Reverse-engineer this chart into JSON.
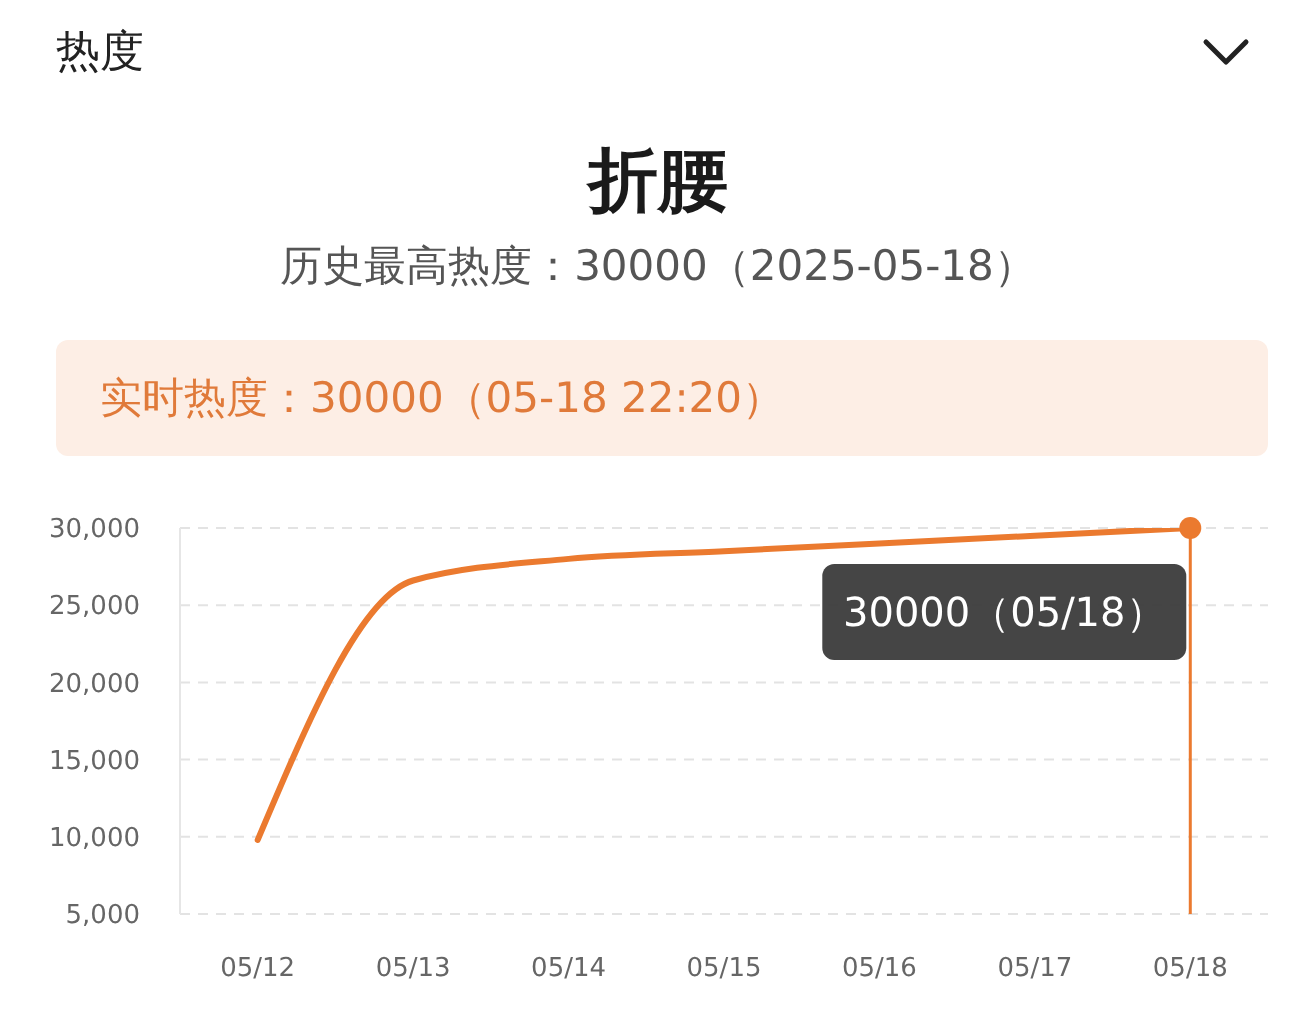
{
  "chart_data": {
    "type": "line",
    "title": "折腰",
    "subtitle": "历史最高热度：30000（2025-05-18）",
    "annotations": [
      "热度",
      "实时热度：30000（05-18 22:20）",
      {
        "text": "30000（05/18）",
        "x": "05/18",
        "y": 30000
      }
    ],
    "categories": [
      "05/12",
      "05/13",
      "05/14",
      "05/15",
      "05/16",
      "05/17",
      "05/18"
    ],
    "series": [
      {
        "color": "#eb7a2f",
        "values": [
          9800,
          26600,
          28000,
          28500,
          29000,
          29500,
          30000
        ]
      }
    ],
    "ylim": [
      5000,
      30000
    ],
    "yticks": [
      {
        "value": 5000,
        "label": "5,000"
      },
      {
        "value": 10000,
        "label": "10,000"
      },
      {
        "value": 15000,
        "label": "15,000"
      },
      {
        "value": 20000,
        "label": "20,000"
      },
      {
        "value": 25000,
        "label": "25,000"
      },
      {
        "value": 30000,
        "label": "30,000"
      }
    ],
    "grid": "y",
    "marker": "none",
    "line_style": "solid",
    "ref_lines": [
      {
        "axis": "x",
        "value": "05/18",
        "color": "#eb7a2f"
      }
    ]
  }
}
